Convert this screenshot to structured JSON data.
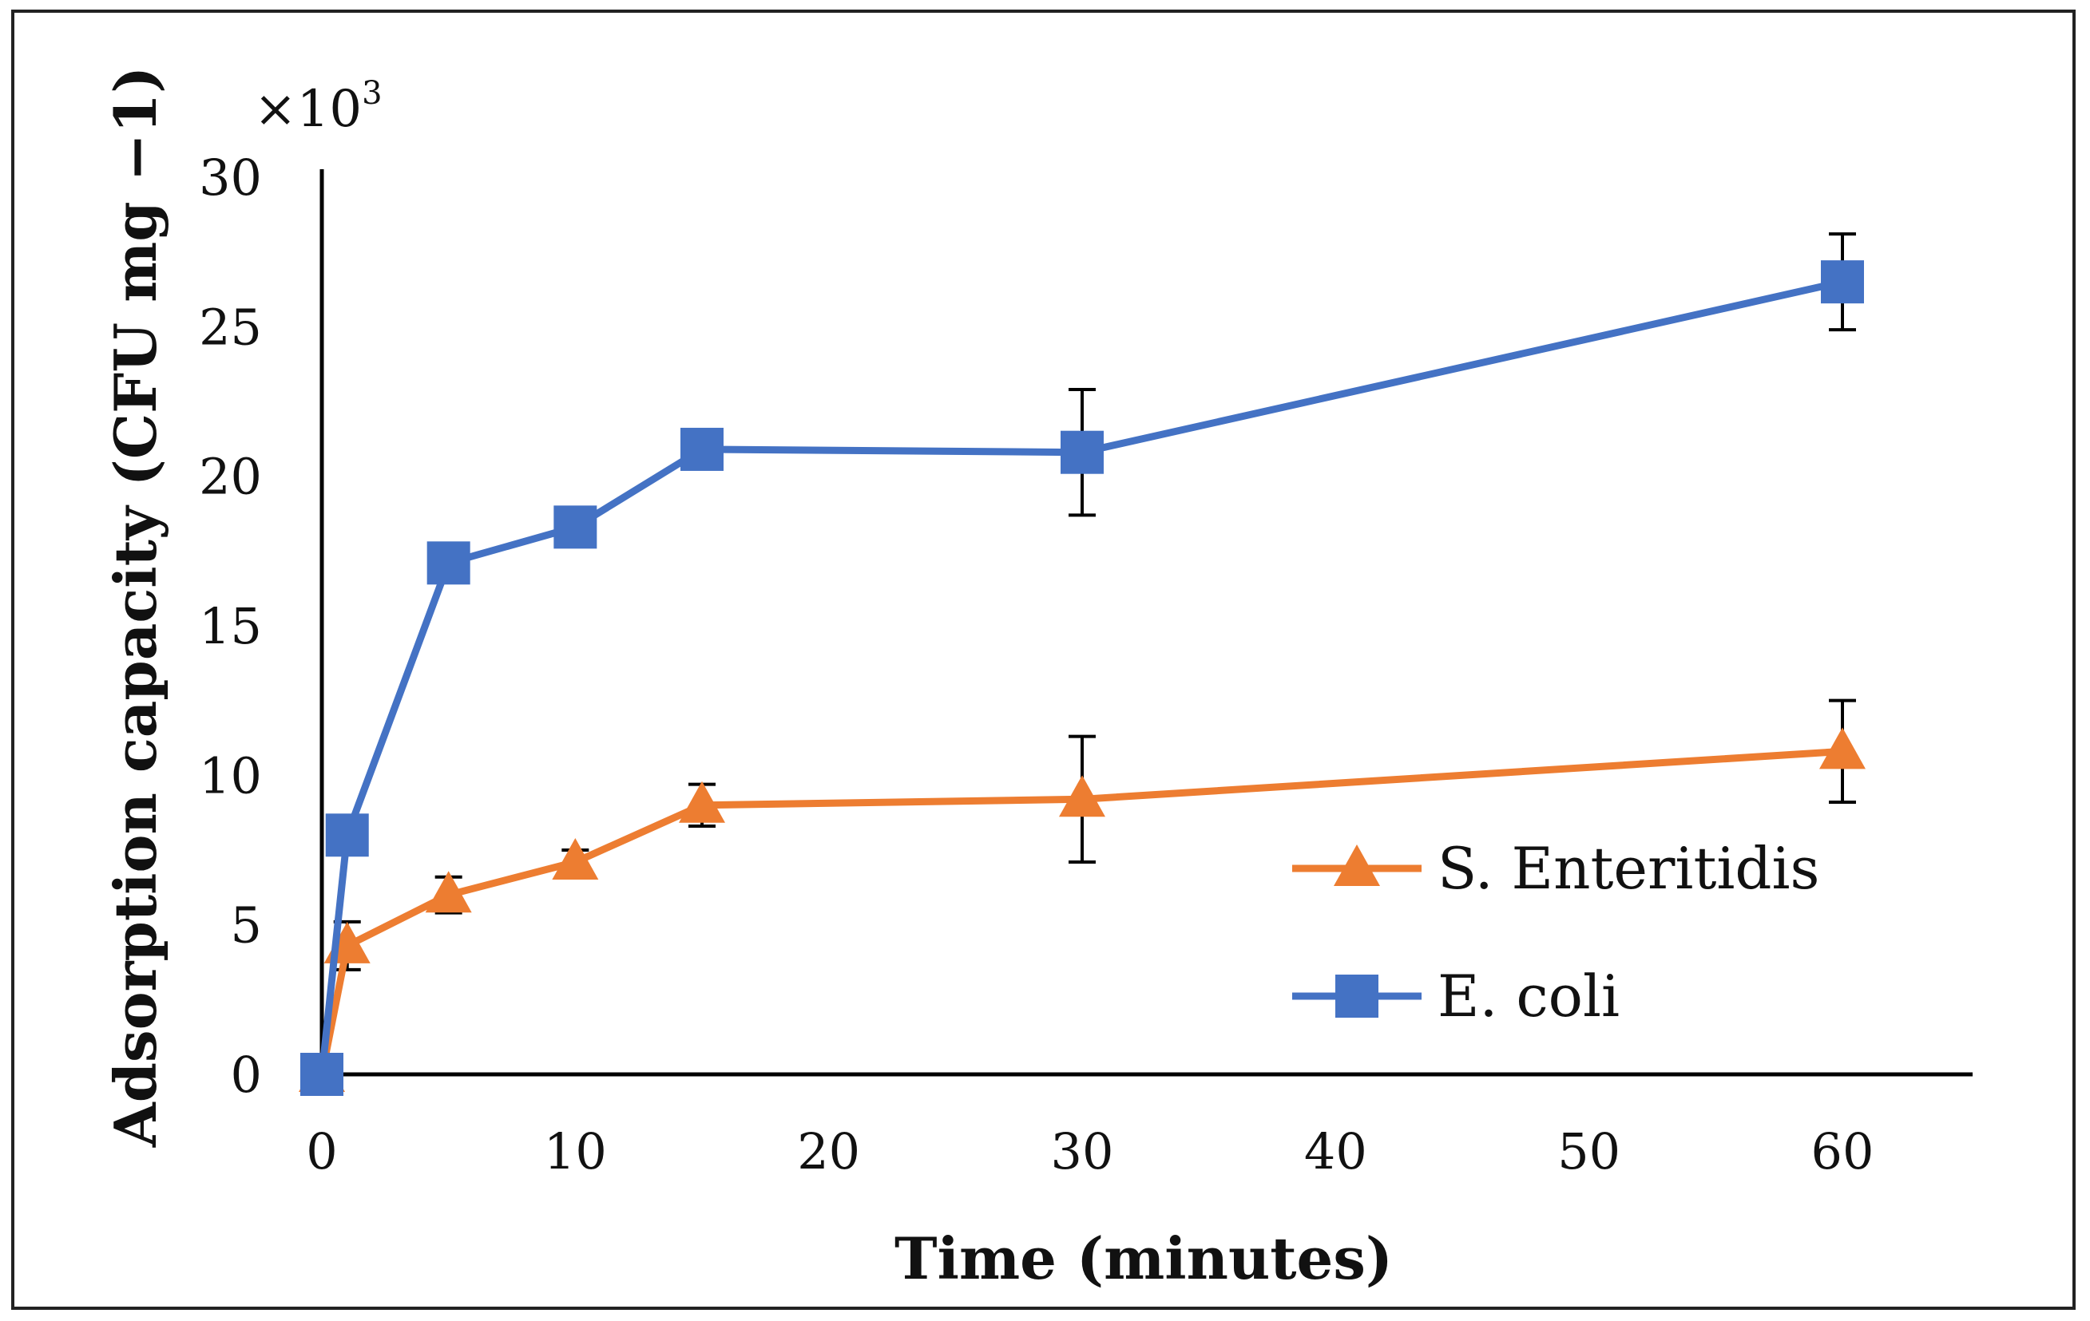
{
  "chart_data": {
    "type": "line",
    "title": "",
    "xlabel": "Time (minutes)",
    "ylabel": "Adsorption capacity (CFU mg −1)",
    "y_multiplier": {
      "base": "×10",
      "exponent": "3"
    },
    "ylim": [
      0,
      30
    ],
    "yticks": [
      0,
      5,
      10,
      15,
      20,
      25,
      30
    ],
    "x_tick_labels": [
      "0",
      "10",
      "20",
      "30",
      "40",
      "50",
      "60"
    ],
    "x_tick_positions": [
      0,
      10,
      20,
      30,
      40,
      50,
      60
    ],
    "series": [
      {
        "name": "S. Enteritidis",
        "color": "#ED7D31",
        "marker": "triangle",
        "x": [
          0,
          1,
          5,
          10,
          15,
          30,
          60
        ],
        "values": [
          0,
          4.3,
          6.0,
          7.1,
          9.0,
          9.2,
          10.8
        ],
        "error": [
          0,
          0.8,
          0.6,
          0.4,
          0.7,
          2.1,
          1.7
        ]
      },
      {
        "name": "E. coli",
        "color": "#4472C4",
        "marker": "square",
        "x": [
          0,
          1,
          5,
          10,
          15,
          30,
          60
        ],
        "values": [
          0,
          8.0,
          17.1,
          18.3,
          20.9,
          20.8,
          26.5
        ],
        "error": [
          0,
          0.3,
          0,
          0,
          0,
          2.1,
          1.6
        ]
      }
    ],
    "legend_position": "lower-right",
    "grid": false
  }
}
